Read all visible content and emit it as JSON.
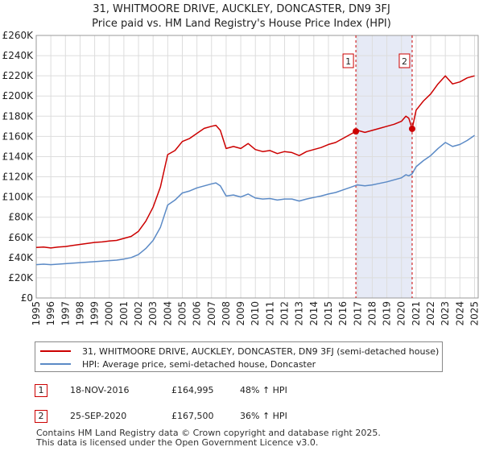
{
  "title": "31, WHITMOORE DRIVE, AUCKLEY, DONCASTER, DN9 3FJ",
  "subtitle": "Price paid vs. HM Land Registry's House Price Index (HPI)",
  "colors": {
    "property": "#cc0000",
    "hpi": "#5b8ac6",
    "shade": "#e6eaf6",
    "grid": "#dddddd",
    "marker_line": "#cc0000"
  },
  "chart_data": {
    "type": "line",
    "title": "Price paid vs. HM Land Registry's House Price Index (HPI)",
    "xlabel": "",
    "ylabel": "",
    "xlim": [
      1995,
      2025.25
    ],
    "ylim": [
      0,
      260000
    ],
    "y_ticks": [
      0,
      20000,
      40000,
      60000,
      80000,
      100000,
      120000,
      140000,
      160000,
      180000,
      200000,
      220000,
      240000,
      260000
    ],
    "y_tick_labels": [
      "£0",
      "£20K",
      "£40K",
      "£60K",
      "£80K",
      "£100K",
      "£120K",
      "£140K",
      "£160K",
      "£180K",
      "£200K",
      "£220K",
      "£240K",
      "£260K"
    ],
    "x_ticks": [
      1995,
      1996,
      1997,
      1998,
      1999,
      2000,
      2001,
      2002,
      2003,
      2004,
      2005,
      2006,
      2007,
      2008,
      2009,
      2010,
      2011,
      2012,
      2013,
      2014,
      2015,
      2016,
      2017,
      2018,
      2019,
      2020,
      2021,
      2022,
      2023,
      2024,
      2025
    ],
    "x_tick_labels": [
      "1995",
      "1996",
      "1997",
      "1998",
      "1999",
      "2000",
      "2001",
      "2002",
      "2003",
      "2004",
      "2005",
      "2006",
      "2007",
      "2008",
      "2009",
      "2010",
      "2011",
      "2012",
      "2013",
      "2014",
      "2015",
      "2016",
      "2017",
      "2018",
      "2019",
      "2020",
      "2021",
      "2022",
      "2023",
      "2024",
      "2025"
    ],
    "legend_position": "below",
    "series": [
      {
        "name": "31, WHITMOORE DRIVE, AUCKLEY, DONCASTER, DN9 3FJ (semi-detached house)",
        "color": "#cc0000",
        "x": [
          1995.0,
          1995.5,
          1996.0,
          1996.5,
          1997.0,
          1997.5,
          1998.0,
          1998.5,
          1999.0,
          1999.5,
          2000.0,
          2000.5,
          2001.0,
          2001.5,
          2002.0,
          2002.5,
          2003.0,
          2003.5,
          2004.0,
          2004.5,
          2005.0,
          2005.5,
          2006.0,
          2006.5,
          2007.0,
          2007.3,
          2007.6,
          2008.0,
          2008.5,
          2009.0,
          2009.5,
          2010.0,
          2010.5,
          2011.0,
          2011.5,
          2012.0,
          2012.5,
          2013.0,
          2013.5,
          2014.0,
          2014.5,
          2015.0,
          2015.5,
          2016.0,
          2016.5,
          2016.88,
          2017.0,
          2017.5,
          2018.0,
          2018.5,
          2019.0,
          2019.5,
          2020.0,
          2020.3,
          2020.5,
          2020.73,
          2021.0,
          2021.5,
          2022.0,
          2022.5,
          2023.0,
          2023.5,
          2024.0,
          2024.5,
          2025.0
        ],
        "values": [
          50000,
          50500,
          49500,
          50500,
          51000,
          52000,
          53000,
          54000,
          55000,
          55500,
          56500,
          57000,
          59000,
          61000,
          66000,
          76000,
          90000,
          110000,
          142000,
          146000,
          155000,
          158000,
          163000,
          168000,
          170000,
          171000,
          166000,
          148000,
          150000,
          148000,
          153000,
          147000,
          145000,
          146000,
          143000,
          145000,
          144000,
          141000,
          145000,
          147000,
          149000,
          152000,
          154000,
          158000,
          162000,
          164995,
          166000,
          164000,
          166000,
          168000,
          170000,
          172000,
          175000,
          180000,
          178000,
          167500,
          186000,
          195000,
          202000,
          212000,
          220000,
          212000,
          214000,
          218000,
          220000
        ]
      },
      {
        "name": "HPI: Average price, semi-detached house, Doncaster",
        "color": "#5b8ac6",
        "x": [
          1995.0,
          1995.5,
          1996.0,
          1996.5,
          1997.0,
          1997.5,
          1998.0,
          1998.5,
          1999.0,
          1999.5,
          2000.0,
          2000.5,
          2001.0,
          2001.5,
          2002.0,
          2002.5,
          2003.0,
          2003.5,
          2004.0,
          2004.5,
          2005.0,
          2005.5,
          2006.0,
          2006.5,
          2007.0,
          2007.3,
          2007.6,
          2008.0,
          2008.5,
          2009.0,
          2009.5,
          2010.0,
          2010.5,
          2011.0,
          2011.5,
          2012.0,
          2012.5,
          2013.0,
          2013.5,
          2014.0,
          2014.5,
          2015.0,
          2015.5,
          2016.0,
          2016.5,
          2016.88,
          2017.0,
          2017.5,
          2018.0,
          2018.5,
          2019.0,
          2019.5,
          2020.0,
          2020.3,
          2020.5,
          2020.73,
          2021.0,
          2021.5,
          2022.0,
          2022.5,
          2023.0,
          2023.5,
          2024.0,
          2024.5,
          2025.0
        ],
        "values": [
          33000,
          33500,
          33000,
          33500,
          34000,
          34500,
          35000,
          35500,
          36000,
          36500,
          37000,
          37500,
          38500,
          40000,
          43000,
          49000,
          57000,
          70000,
          92000,
          97000,
          104000,
          106000,
          109000,
          111000,
          113000,
          114000,
          111000,
          101000,
          102000,
          100000,
          103000,
          99000,
          98000,
          98500,
          97000,
          98000,
          98000,
          96000,
          98000,
          99500,
          101000,
          103000,
          104500,
          107000,
          109500,
          111500,
          112000,
          111000,
          112000,
          113500,
          115000,
          117000,
          119000,
          122000,
          121000,
          123000,
          130000,
          136000,
          141000,
          148000,
          154000,
          150000,
          152000,
          156000,
          161000
        ]
      }
    ],
    "annotations": [
      {
        "label": "1",
        "x": 2016.88,
        "value": 164995
      },
      {
        "label": "2",
        "x": 2020.73,
        "value": 167500
      }
    ],
    "shaded_range": [
      2016.88,
      2020.73
    ]
  },
  "legend": {
    "property_label": "31, WHITMOORE DRIVE, AUCKLEY, DONCASTER, DN9 3FJ (semi-detached house)",
    "hpi_label": "HPI: Average price, semi-detached house, Doncaster"
  },
  "transactions": [
    {
      "num": "1",
      "date": "18-NOV-2016",
      "price": "£164,995",
      "hpi": "48% ↑ HPI"
    },
    {
      "num": "2",
      "date": "25-SEP-2020",
      "price": "£167,500",
      "hpi": "36% ↑ HPI"
    }
  ],
  "footer": {
    "line1": "Contains HM Land Registry data © Crown copyright and database right 2025.",
    "line2": "This data is licensed under the Open Government Licence v3.0."
  }
}
